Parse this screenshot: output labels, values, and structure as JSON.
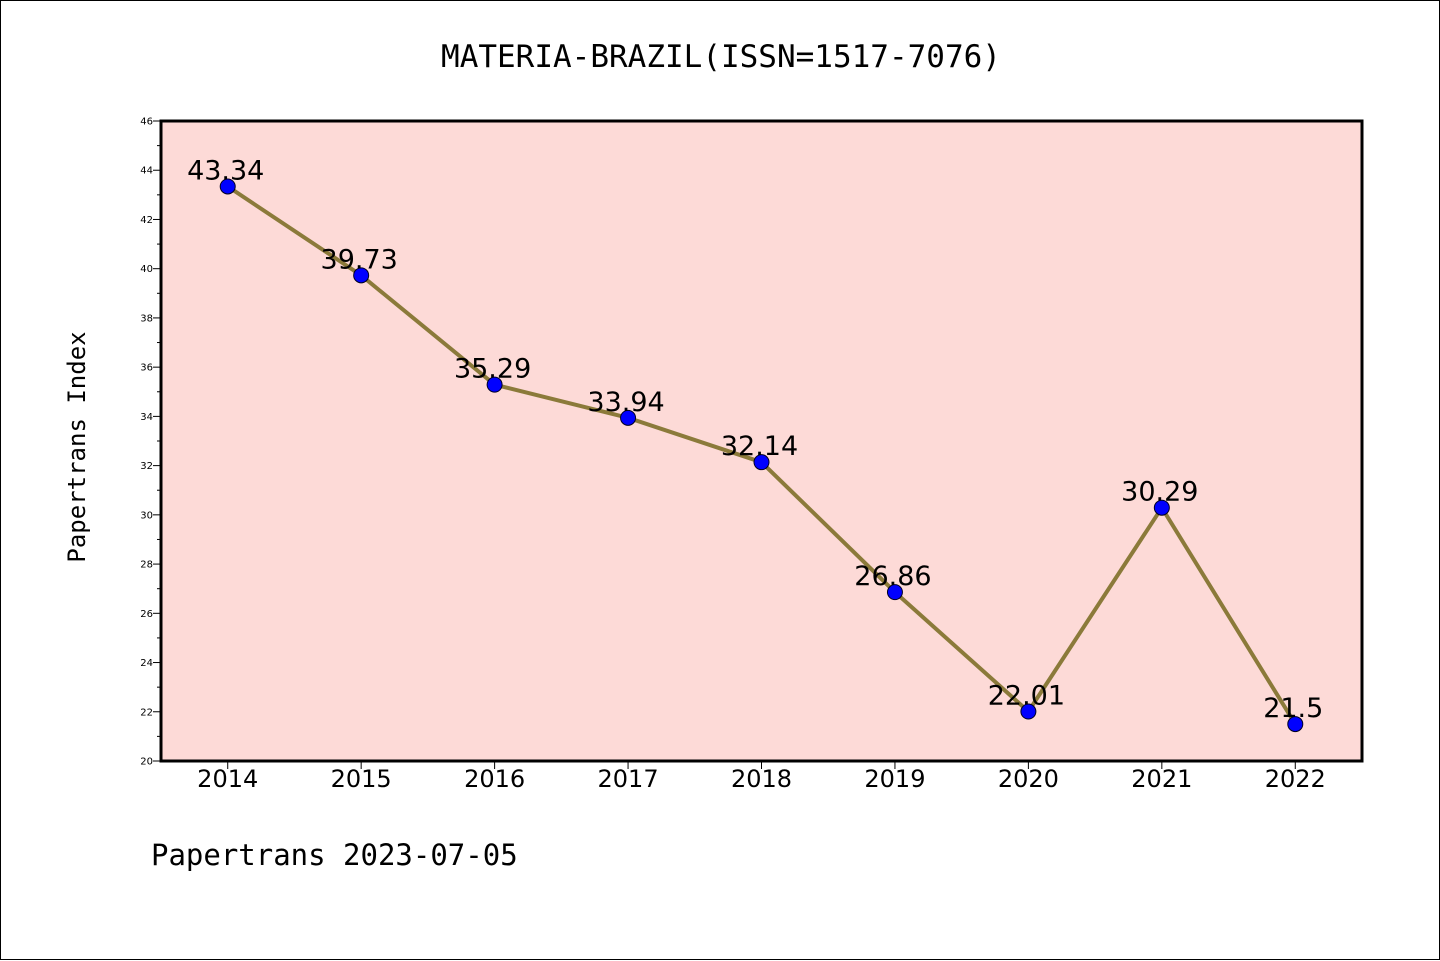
{
  "chart_data": {
    "type": "line",
    "title": "MATERIA-BRAZIL(ISSN=1517-7076)",
    "ylabel": "Papertrans Index",
    "xlabel": "",
    "categories": [
      "2014",
      "2015",
      "2016",
      "2017",
      "2018",
      "2019",
      "2020",
      "2021",
      "2022"
    ],
    "values": [
      43.34,
      39.73,
      35.29,
      33.94,
      32.14,
      26.86,
      22.01,
      30.29,
      21.5
    ],
    "data_labels": [
      "43.34",
      "39.73",
      "35.29",
      "33.94",
      "32.14",
      "26.86",
      "22.01",
      "30.29",
      "21.5"
    ],
    "ylim": [
      20,
      46
    ],
    "yticks": [
      20,
      22,
      24,
      26,
      28,
      30,
      32,
      34,
      36,
      38,
      40,
      42,
      44,
      46
    ],
    "ytick_labels": [
      "20",
      "22",
      "24",
      "26",
      "28",
      "30",
      "32",
      "34",
      "36",
      "38",
      "40",
      "42",
      "44",
      "46"
    ],
    "grid": false,
    "colors": {
      "plot_background": "#fddad7",
      "line": "#8b7a3a",
      "marker": "#0000ff"
    }
  },
  "footer": "Papertrans 2023-07-05"
}
